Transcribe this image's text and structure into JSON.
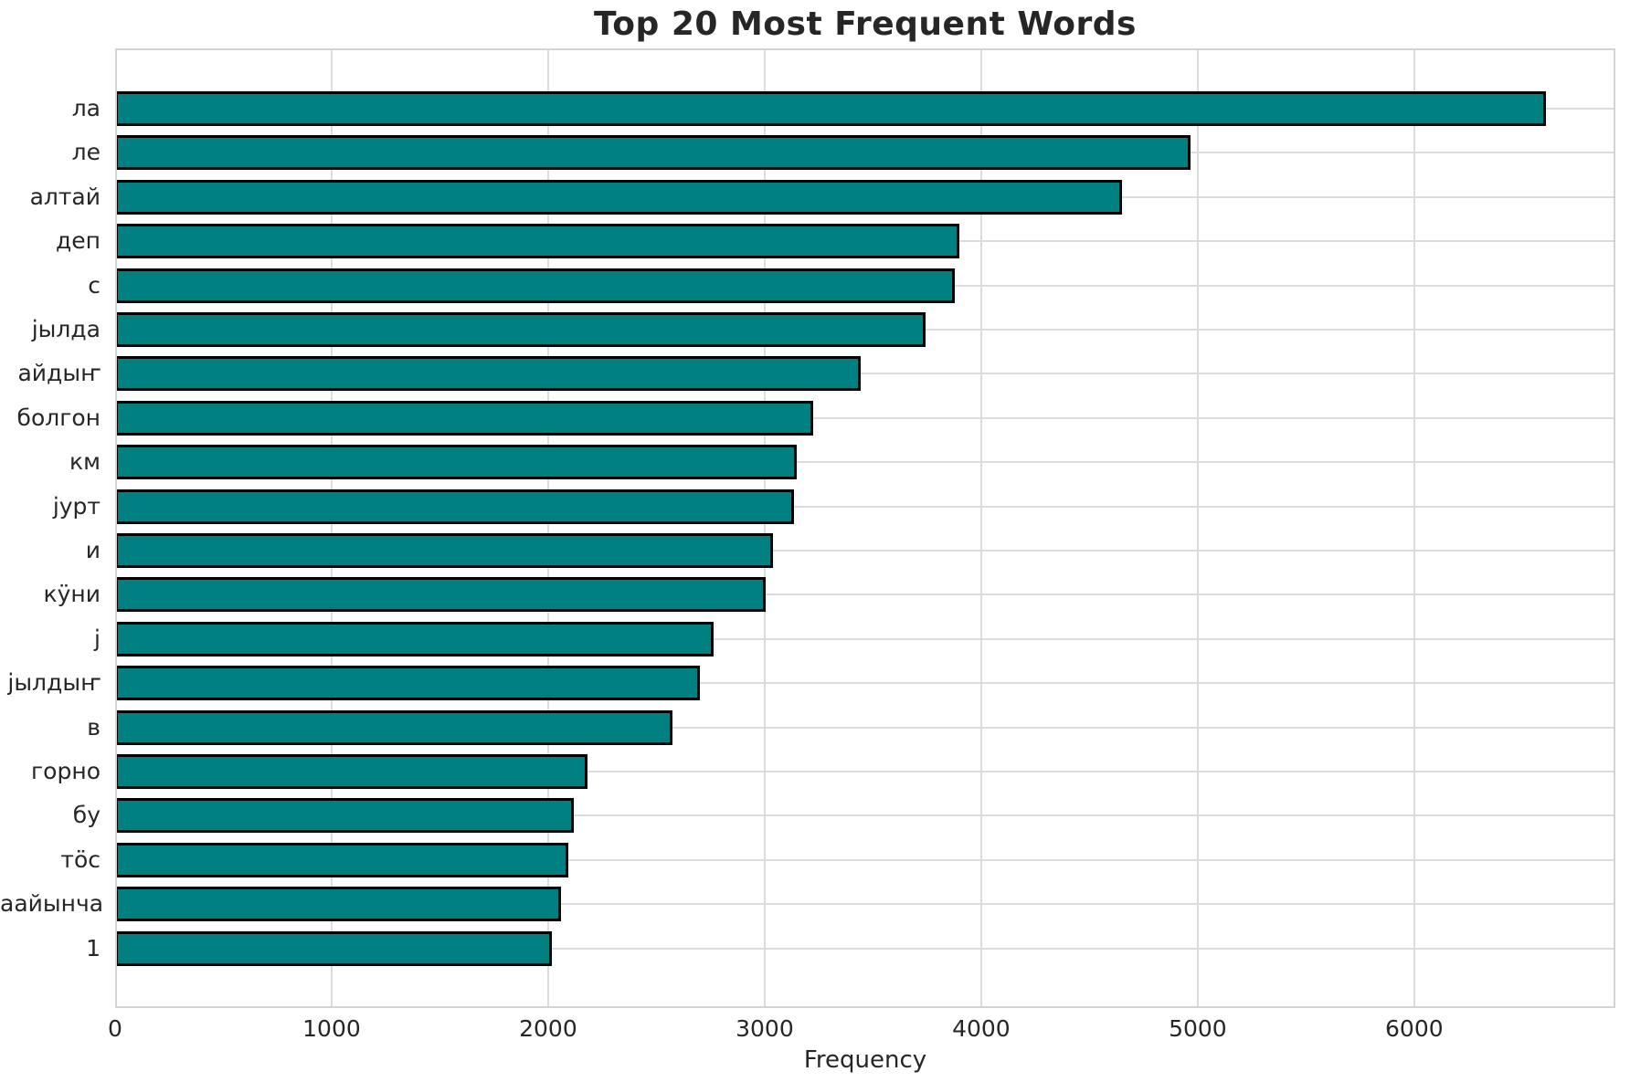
{
  "chart_data": {
    "type": "bar",
    "orientation": "horizontal",
    "title": "Top 20 Most Frequent Words",
    "xlabel": "Frequency",
    "ylabel": "",
    "categories": [
      "ла",
      "ле",
      "алтай",
      "деп",
      "с",
      "јылда",
      "айдыҥ",
      "болгон",
      "км",
      "јурт",
      "и",
      "кӱни",
      "ј",
      "јылдыҥ",
      "в",
      "горно",
      "бу",
      "тӧс",
      "аайынча",
      "1"
    ],
    "values": [
      6610,
      4965,
      4650,
      3900,
      3880,
      3745,
      3445,
      3225,
      3150,
      3135,
      3040,
      3005,
      2765,
      2700,
      2575,
      2180,
      2120,
      2095,
      2060,
      2015
    ],
    "x_ticks": [
      0,
      1000,
      2000,
      3000,
      4000,
      5000,
      6000
    ],
    "xlim": [
      0,
      6929
    ],
    "grid": true,
    "legend": false,
    "colors": {
      "bar_fill": "#008080",
      "bar_edge": "#000000",
      "grid": "#dcdcdc",
      "spine": "#d4d4d4",
      "text": "#262626"
    }
  }
}
